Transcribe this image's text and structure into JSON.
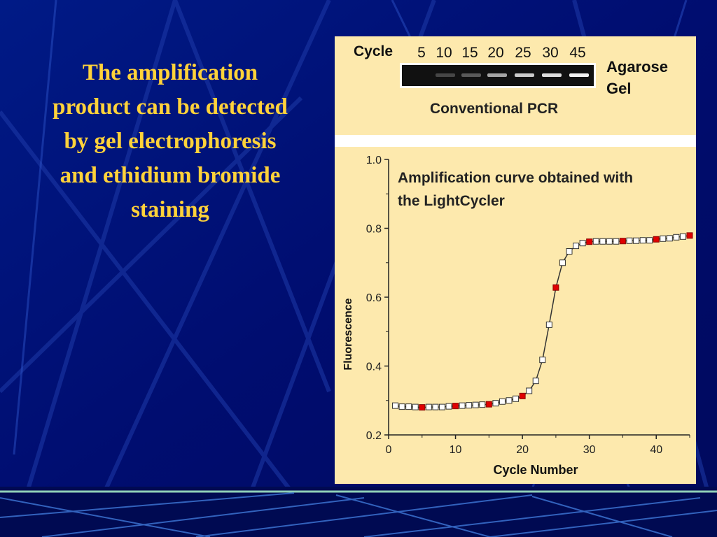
{
  "slide": {
    "text_lines": [
      "The amplification",
      "product can be detected",
      "by gel electrophoresis",
      "and ethidium bromide",
      "staining"
    ]
  },
  "gel": {
    "cycle_label": "Cycle",
    "cycles": [
      "5",
      "10",
      "15",
      "20",
      "25",
      "30",
      "45"
    ],
    "side_label_lines": [
      "Agarose",
      "Gel"
    ],
    "caption": "Conventional PCR",
    "band_intensity": [
      0,
      0.05,
      0.15,
      0.55,
      0.75,
      0.85,
      0.95
    ]
  },
  "chart_data": {
    "type": "scatter",
    "title_lines": [
      "Amplification curve obtained with",
      "the LightCycler"
    ],
    "xlabel": "Cycle Number",
    "ylabel": "Fluorescence",
    "xlim": [
      0,
      45
    ],
    "ylim": [
      0.2,
      1.0
    ],
    "xticks": [
      "0",
      "10",
      "20",
      "30",
      "40"
    ],
    "yticks": [
      "0.2",
      "0.4",
      "0.6",
      "0.8",
      "1.0"
    ],
    "grid": false,
    "series": [
      {
        "x": [
          1,
          2,
          3,
          4,
          5,
          6,
          7,
          8,
          9,
          10,
          11,
          12,
          13,
          14,
          15,
          16,
          17,
          18,
          19,
          20,
          21,
          22,
          23,
          24,
          25,
          26,
          27,
          28,
          29,
          30,
          31,
          32,
          33,
          34,
          35,
          36,
          37,
          38,
          39,
          40,
          41,
          42,
          43,
          44,
          45
        ],
        "y": [
          0.285,
          0.282,
          0.282,
          0.281,
          0.28,
          0.281,
          0.281,
          0.281,
          0.283,
          0.284,
          0.285,
          0.286,
          0.287,
          0.288,
          0.289,
          0.292,
          0.297,
          0.3,
          0.305,
          0.313,
          0.328,
          0.357,
          0.418,
          0.52,
          0.628,
          0.7,
          0.733,
          0.749,
          0.757,
          0.761,
          0.762,
          0.762,
          0.762,
          0.762,
          0.763,
          0.764,
          0.764,
          0.765,
          0.765,
          0.768,
          0.77,
          0.771,
          0.774,
          0.776,
          0.779
        ],
        "highlighted_x": [
          5,
          10,
          15,
          20,
          25,
          30,
          35,
          40,
          45
        ]
      }
    ],
    "colors": {
      "marker_fill": "#ffffff",
      "highlight_fill": "#e00000",
      "line": "#333333"
    }
  }
}
